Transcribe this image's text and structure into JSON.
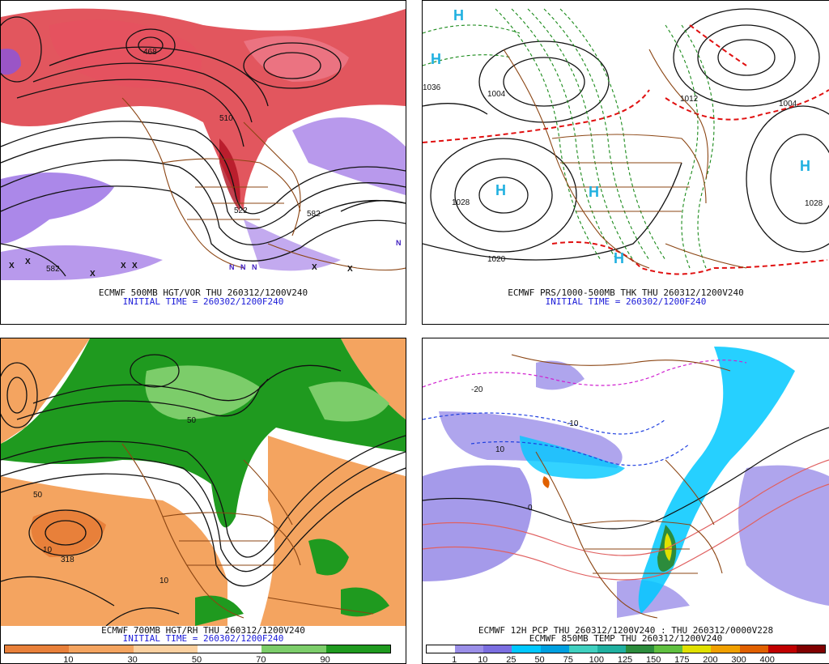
{
  "panels": {
    "top_left": {
      "caption_line1": "ECMWF 500MB HGT/VOR THU 260312/1200V240",
      "caption_line2": "INITIAL TIME = 260302/1200F240",
      "contour_labels": [
        "582",
        "582",
        "510",
        "522",
        "468"
      ]
    },
    "top_right": {
      "caption_line1": "ECMWF PRS/1000-500MB THK THU 260312/1200V240",
      "caption_line2": "INITIAL TIME = 260302/1200F240",
      "high_label": "H",
      "contour_labels": [
        "1028",
        "1020",
        "1028",
        "1036",
        "1004",
        "1012",
        "1004"
      ]
    },
    "bottom_left": {
      "caption_line1": "ECMWF 700MB HGT/RH THU 260312/1200V240",
      "caption_line2": "INITIAL TIME = 260302/1200F240",
      "contour_labels": [
        "318",
        "10",
        "50",
        "50",
        "10"
      ],
      "legend": {
        "colors": [
          "#e8803a",
          "#f4a460",
          "#fbd0a0",
          "#ffffff",
          "#7ccd6a",
          "#1f9a1f"
        ],
        "ticks": [
          "10",
          "30",
          "50",
          "70",
          "90"
        ]
      }
    },
    "bottom_right": {
      "caption_line1": "ECMWF 12H PCP THU 260312/1200V240 : THU 260312/0000V228",
      "caption_line2": "ECMWF 850MB TEMP THU 260312/1200V240",
      "contour_labels": [
        "-20",
        "-10",
        "0",
        "10"
      ],
      "legend": {
        "colors": [
          "#ffffff",
          "#9b8fe8",
          "#7b6ee0",
          "#00c8ff",
          "#00a0e0",
          "#40d0c0",
          "#20b0a0",
          "#2c8c3c",
          "#60c040",
          "#e0e000",
          "#f0a000",
          "#e06000",
          "#c00000",
          "#800000"
        ],
        "ticks": [
          "1",
          "10",
          "25",
          "50",
          "75",
          "100",
          "125",
          "150",
          "175",
          "200",
          "300",
          "400"
        ]
      }
    }
  },
  "colors": {
    "vorticity_red": "#d81e28",
    "vorticity_purple": "#8855e0",
    "land_border": "#8b4513",
    "thickness_green": "#1a8a1a",
    "thickness_red": "#e01010",
    "high_marker": "#20b0e0",
    "rh_green": "#1f9a1f",
    "rh_orange": "#f4a460",
    "caption_blue": "#1a1ad8"
  }
}
